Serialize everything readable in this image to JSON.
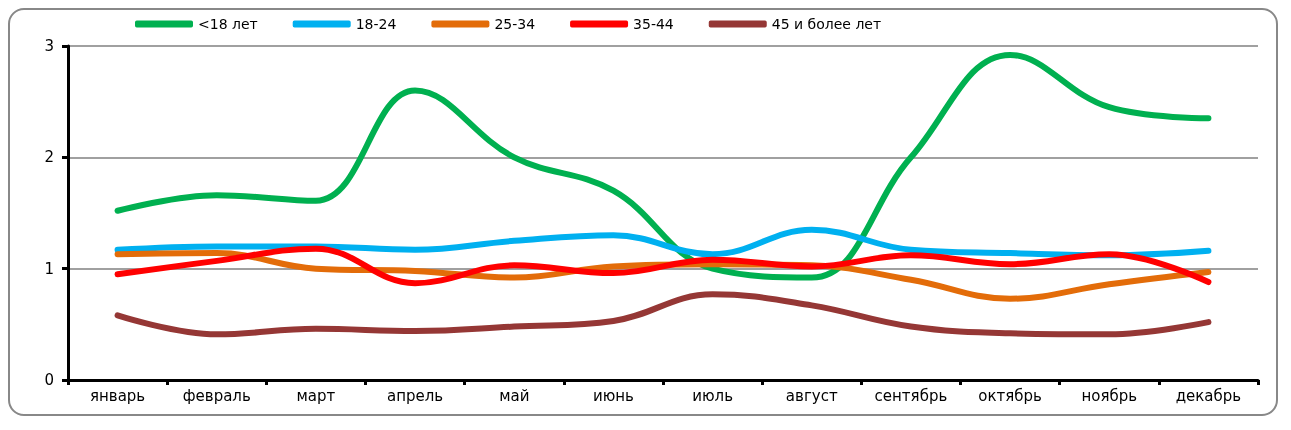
{
  "chart_data": {
    "type": "line",
    "categories": [
      "январь",
      "февраль",
      "март",
      "апрель",
      "май",
      "июнь",
      "июль",
      "август",
      "сентябрь",
      "октябрь",
      "ноябрь",
      "декабрь"
    ],
    "series": [
      {
        "name": "<18 лет",
        "color": "#00b050",
        "values": [
          1.52,
          1.66,
          1.61,
          2.6,
          2.0,
          1.7,
          1.0,
          0.92,
          2.0,
          2.92,
          2.45,
          2.35
        ]
      },
      {
        "name": "18-24",
        "color": "#00b0f0",
        "values": [
          1.17,
          1.2,
          1.2,
          1.17,
          1.25,
          1.3,
          1.13,
          1.35,
          1.17,
          1.14,
          1.12,
          1.16
        ]
      },
      {
        "name": "25-34",
        "color": "#e36c09",
        "values": [
          1.13,
          1.14,
          1.0,
          0.98,
          0.92,
          1.02,
          1.04,
          1.03,
          0.9,
          0.73,
          0.86,
          0.97
        ]
      },
      {
        "name": "35-44",
        "color": "#ff0000",
        "values": [
          0.95,
          1.07,
          1.18,
          0.87,
          1.03,
          0.96,
          1.08,
          1.02,
          1.12,
          1.04,
          1.13,
          0.88
        ]
      },
      {
        "name": "45 и более лет",
        "color": "#953735",
        "values": [
          0.58,
          0.41,
          0.46,
          0.44,
          0.48,
          0.53,
          0.77,
          0.67,
          0.48,
          0.42,
          0.41,
          0.52
        ]
      }
    ],
    "ylim": [
      0,
      3
    ],
    "yticks": [
      0,
      1,
      2,
      3
    ],
    "grid": "y",
    "legend": "top",
    "marker": "none",
    "line_style": "solid"
  }
}
